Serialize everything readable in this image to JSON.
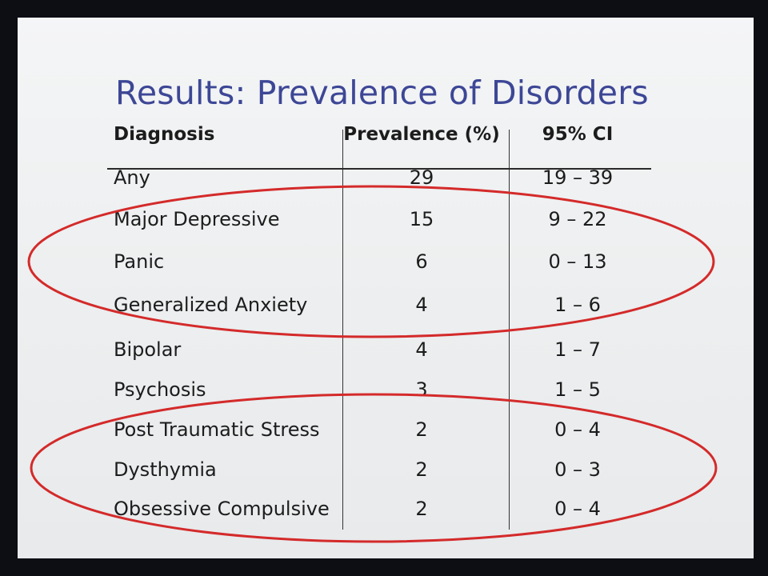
{
  "slide": {
    "title": "Results: Prevalence of Disorders"
  },
  "table": {
    "headers": {
      "diagnosis": "Diagnosis",
      "prevalence": "Prevalence (%)",
      "ci": "95% CI"
    },
    "rows": [
      {
        "diagnosis": "Any",
        "prevalence": "29",
        "ci": "19 – 39"
      },
      {
        "diagnosis": "Major Depressive",
        "prevalence": "15",
        "ci": "9 – 22"
      },
      {
        "diagnosis": "Panic",
        "prevalence": "6",
        "ci": "0 – 13"
      },
      {
        "diagnosis": "Generalized Anxiety",
        "prevalence": "4",
        "ci": "1 – 6"
      },
      {
        "diagnosis": "Bipolar",
        "prevalence": "4",
        "ci": "1 – 7"
      },
      {
        "diagnosis": "Psychosis",
        "prevalence": "3",
        "ci": "1 – 5"
      },
      {
        "diagnosis": "Post Traumatic Stress",
        "prevalence": "2",
        "ci": "0 – 4"
      },
      {
        "diagnosis": "Dysthymia",
        "prevalence": "2",
        "ci": "0 – 3"
      },
      {
        "diagnosis": "Obsessive Compulsive",
        "prevalence": "2",
        "ci": "0 – 4"
      }
    ]
  },
  "annotations": {
    "ellipse_color": "#d42a2a"
  }
}
